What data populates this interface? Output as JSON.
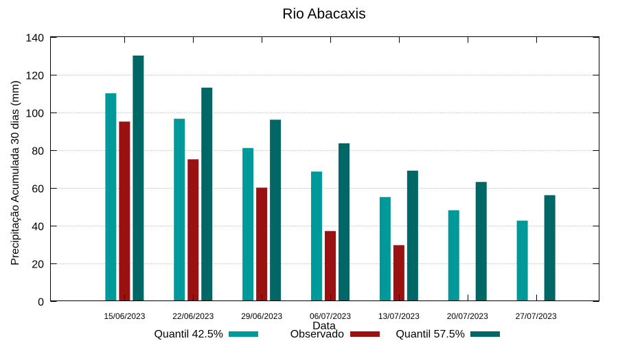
{
  "chart_data": {
    "type": "bar",
    "title": "Rio Abacaxis",
    "xlabel": "Data",
    "ylabel": "Precipitação Acumulada 30 dias (mm)",
    "ylim": [
      0,
      140
    ],
    "yticks": [
      "0",
      "20",
      "40",
      "60",
      "80",
      "100",
      "120",
      "140"
    ],
    "categories": [
      "15/06/2023",
      "22/06/2023",
      "29/06/2023",
      "06/07/2023",
      "13/07/2023",
      "20/07/2023",
      "27/07/2023"
    ],
    "grid": true,
    "legend_position": "bottom",
    "series": [
      {
        "name": "Quantil 42.5%",
        "color": "#009999",
        "values": [
          110,
          96.5,
          81,
          68.5,
          55,
          48,
          42.5
        ]
      },
      {
        "name": "Observado",
        "color": "#991111",
        "values": [
          95,
          75,
          60,
          37,
          29.5,
          null,
          null
        ]
      },
      {
        "name": "Quantil 57.5%",
        "color": "#006666",
        "values": [
          130,
          113,
          96,
          83.5,
          69,
          63,
          56
        ]
      }
    ]
  }
}
